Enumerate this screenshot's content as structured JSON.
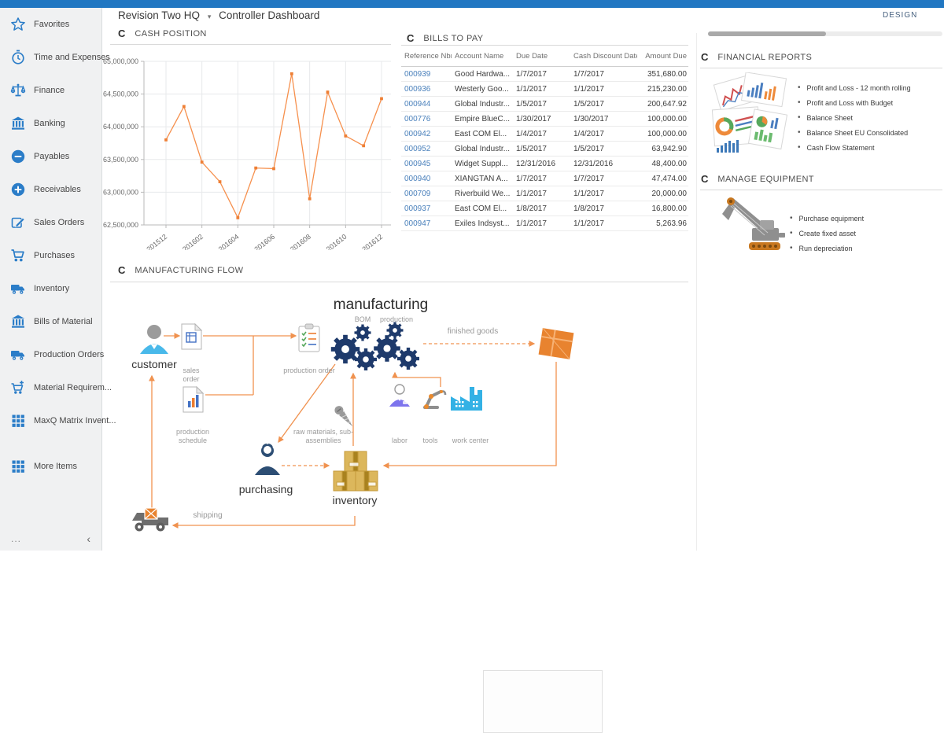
{
  "header": {
    "company": "Revision Two HQ",
    "caret": "▾",
    "page_title": "Controller Dashboard",
    "design_label": "DESIGN"
  },
  "sidebar": {
    "items": [
      {
        "label": "Favorites",
        "icon": "star-icon"
      },
      {
        "label": "Time and Expenses",
        "icon": "clock-icon"
      },
      {
        "label": "Finance",
        "icon": "scales-icon"
      },
      {
        "label": "Banking",
        "icon": "bank-icon"
      },
      {
        "label": "Payables",
        "icon": "minus-circle-icon"
      },
      {
        "label": "Receivables",
        "icon": "plus-circle-icon"
      },
      {
        "label": "Sales Orders",
        "icon": "edit-icon"
      },
      {
        "label": "Purchases",
        "icon": "cart-icon"
      },
      {
        "label": "Inventory",
        "icon": "truck-icon"
      },
      {
        "label": "Bills of Material",
        "icon": "bank-icon"
      },
      {
        "label": "Production Orders",
        "icon": "truck-icon"
      },
      {
        "label": "Material Requirem...",
        "icon": "cart-plus-icon"
      },
      {
        "label": "MaxQ Matrix Invent...",
        "icon": "grid-icon"
      },
      {
        "label": "More Items",
        "icon": "grid-icon",
        "gap_before": true
      }
    ],
    "footer": {
      "ellipsis": "...",
      "collapse": "‹"
    }
  },
  "widgets": {
    "cash_position": {
      "title": "CASH POSITION",
      "refresh_glyph": "C"
    },
    "bills_to_pay": {
      "title": "BILLS TO PAY",
      "refresh_glyph": "C",
      "columns": [
        "Reference Nbr.",
        "Account Name",
        "Due Date",
        "Cash Discount Date",
        "Amount Due"
      ],
      "rows": [
        {
          "ref": "000939",
          "account": "Good Hardwa...",
          "due": "1/7/2017",
          "discount": "1/7/2017",
          "amount": "351,680.00"
        },
        {
          "ref": "000936",
          "account": "Westerly Goo...",
          "due": "1/1/2017",
          "discount": "1/1/2017",
          "amount": "215,230.00"
        },
        {
          "ref": "000944",
          "account": "Global Industr...",
          "due": "1/5/2017",
          "discount": "1/5/2017",
          "amount": "200,647.92"
        },
        {
          "ref": "000776",
          "account": "Empire BlueC...",
          "due": "1/30/2017",
          "discount": "1/30/2017",
          "amount": "100,000.00"
        },
        {
          "ref": "000942",
          "account": "East COM El...",
          "due": "1/4/2017",
          "discount": "1/4/2017",
          "amount": "100,000.00"
        },
        {
          "ref": "000952",
          "account": "Global Industr...",
          "due": "1/5/2017",
          "discount": "1/5/2017",
          "amount": "63,942.90"
        },
        {
          "ref": "000945",
          "account": "Widget Suppl...",
          "due": "12/31/2016",
          "discount": "12/31/2016",
          "amount": "48,400.00"
        },
        {
          "ref": "000940",
          "account": "XIANGTAN A...",
          "due": "1/7/2017",
          "discount": "1/7/2017",
          "amount": "47,474.00"
        },
        {
          "ref": "000709",
          "account": "Riverbuild We...",
          "due": "1/1/2017",
          "discount": "1/1/2017",
          "amount": "20,000.00"
        },
        {
          "ref": "000937",
          "account": "East COM El...",
          "due": "1/8/2017",
          "discount": "1/8/2017",
          "amount": "16,800.00"
        },
        {
          "ref": "000947",
          "account": "Exiles Indsyst...",
          "due": "1/1/2017",
          "discount": "1/1/2017",
          "amount": "5,263.96"
        }
      ]
    },
    "financial_reports": {
      "title": "FINANCIAL REPORTS",
      "refresh_glyph": "C",
      "links": [
        "Profit and Loss - 12 month rolling",
        "Profit and Loss with Budget",
        "Balance Sheet",
        "Balance Sheet EU Consolidated",
        "Cash Flow Statement"
      ]
    },
    "manage_equipment": {
      "title": "MANAGE EQUIPMENT",
      "refresh_glyph": "C",
      "links": [
        "Purchase equipment",
        "Create fixed asset",
        "Run depreciation"
      ]
    },
    "manufacturing_flow": {
      "title": "MANUFACTURING FLOW",
      "refresh_glyph": "C",
      "labels": {
        "manufacturing": "manufacturing",
        "bom": "BOM",
        "production": "production",
        "customer": "customer",
        "sales_order": "sales order",
        "production_schedule": "production schedule",
        "production_order": "production order",
        "finished_goods": "finished goods",
        "raw_materials": "raw materials, sub-assemblies",
        "labor": "labor",
        "tools": "tools",
        "work_center": "work center",
        "purchasing": "purchasing",
        "inventory": "inventory",
        "shipping": "shipping"
      }
    }
  },
  "chart_data": {
    "type": "line",
    "title": "CASH POSITION",
    "x": [
      "201512",
      "201601",
      "201602",
      "201603",
      "201604",
      "201605",
      "201606",
      "201607",
      "201608",
      "201609",
      "201610",
      "201611",
      "201612"
    ],
    "values": [
      63800000,
      64310000,
      63460000,
      63160000,
      62610000,
      63370000,
      63360000,
      64810000,
      62900000,
      64530000,
      63860000,
      63710000,
      64430000
    ],
    "x_tick_labels": [
      "201512",
      "201602",
      "201604",
      "201606",
      "201608",
      "201610",
      "201612"
    ],
    "ylim": [
      62500000,
      65000000
    ],
    "y_tick_step": 500000,
    "xlabel": "",
    "ylabel": "",
    "grid": true,
    "legend": "none",
    "line_color": "#f6904d",
    "marker_color": "#ee7f35"
  },
  "colors": {
    "topbar": "#2177c2",
    "sidebar_icon": "#2b7dc8",
    "link_blue": "#4a80bb",
    "flow_arrow": "#f0924f",
    "gear_navy": "#1e3a6b"
  }
}
